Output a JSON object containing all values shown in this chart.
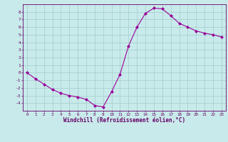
{
  "x": [
    0,
    1,
    2,
    3,
    4,
    5,
    6,
    7,
    8,
    9,
    10,
    11,
    12,
    13,
    14,
    15,
    16,
    17,
    18,
    19,
    20,
    21,
    22,
    23
  ],
  "y": [
    0.0,
    -0.8,
    -1.5,
    -2.2,
    -2.7,
    -3.0,
    -3.2,
    -3.5,
    -4.3,
    -4.5,
    -2.5,
    -0.2,
    3.5,
    6.0,
    7.8,
    8.5,
    8.4,
    7.5,
    6.5,
    6.0,
    5.5,
    5.2,
    5.0,
    4.7
  ],
  "line_color": "#990099",
  "marker": "D",
  "marker_size": 2,
  "bg_color": "#c8eaea",
  "grid_color": "#a8d0d0",
  "axis_color": "#660066",
  "xlabel": "Windchill (Refroidissement éolien,°C)",
  "xlabel_color": "#660066",
  "tick_color": "#660066",
  "xlim": [
    -0.5,
    23.5
  ],
  "ylim": [
    -5.0,
    9.0
  ],
  "yticks": [
    -4,
    -3,
    -2,
    -1,
    0,
    1,
    2,
    3,
    4,
    5,
    6,
    7,
    8
  ],
  "xticks": [
    0,
    1,
    2,
    3,
    4,
    5,
    6,
    7,
    8,
    9,
    10,
    11,
    12,
    13,
    14,
    15,
    16,
    17,
    18,
    19,
    20,
    21,
    22,
    23
  ],
  "figsize": [
    3.2,
    2.0
  ],
  "dpi": 100
}
